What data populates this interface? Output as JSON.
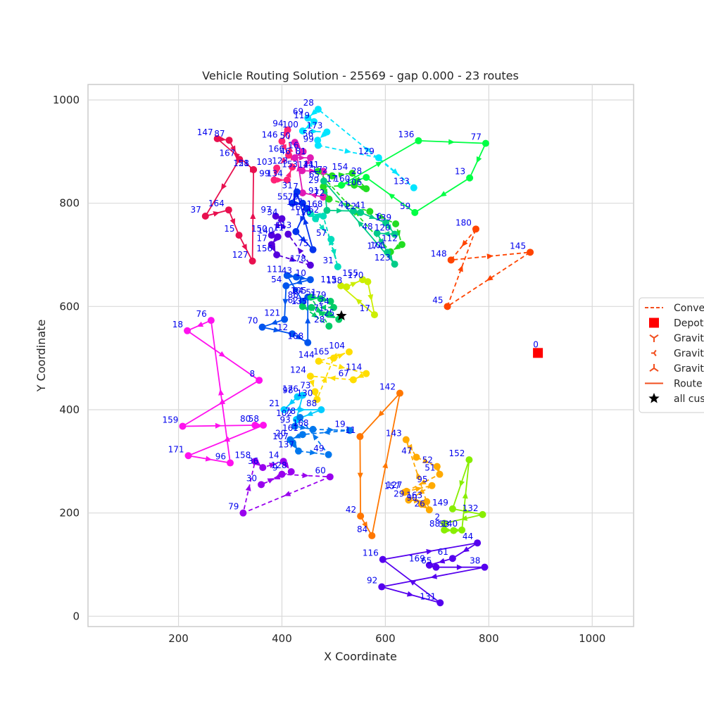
{
  "chart_data": {
    "type": "scatter",
    "title": "Vehicle Routing Solution - 25569 - gap 0.000 - 23 routes",
    "xlabel": "X Coordinate",
    "ylabel": "Y Coordinate",
    "xlim": [
      25,
      1080
    ],
    "ylim": [
      -20,
      1030
    ],
    "x_ticks": [
      200,
      400,
      600,
      800,
      1000
    ],
    "y_ticks": [
      0,
      200,
      400,
      600,
      800,
      1000
    ],
    "grid": true,
    "legend_position": "right-center (clipped)",
    "legend": [
      {
        "label": "Conve",
        "marker": "dashed-line",
        "color": "#f24e1e"
      },
      {
        "label": "Depot",
        "marker": "square",
        "color": "#ff0000"
      },
      {
        "label": "Gravit",
        "marker": "tri_down",
        "color": "#f24e1e"
      },
      {
        "label": "Gravit",
        "marker": "tri_left",
        "color": "#f24e1e"
      },
      {
        "label": "Gravit",
        "marker": "tri_up",
        "color": "#f24e1e"
      },
      {
        "label": "Route",
        "marker": "solid-line",
        "color": "#f24e1e"
      },
      {
        "label": "all cus",
        "marker": "star",
        "color": "#000000"
      }
    ],
    "depot": {
      "id": "0",
      "x": 895,
      "y": 510,
      "color": "#ff0000"
    },
    "star": {
      "x": 515,
      "y": 582
    },
    "routes": [
      {
        "color": "#e8104f",
        "stops": [
          [
            "147",
            275,
            925
          ],
          [
            "87",
            298,
            922
          ],
          [
            "167",
            318,
            885
          ],
          [
            "37",
            252,
            775
          ],
          [
            "164",
            297,
            787
          ],
          [
            "15",
            317,
            738
          ],
          [
            "127",
            343,
            688
          ],
          [
            "121",
            345,
            865
          ],
          [
            "58",
            345,
            865
          ]
        ]
      },
      {
        "color": "#ff2277",
        "stops": [
          [
            "94",
            411,
            942
          ],
          [
            "146",
            400,
            920
          ],
          [
            "166",
            413,
            893
          ],
          [
            "103",
            390,
            868
          ],
          [
            "99",
            385,
            845
          ],
          [
            "134",
            410,
            845
          ],
          [
            "123",
            420,
            870
          ]
        ]
      },
      {
        "color": "#e01ab5",
        "stops": [
          [
            "50",
            425,
            918
          ],
          [
            "16",
            441,
            900
          ],
          [
            "46",
            425,
            888
          ],
          [
            "81",
            455,
            888
          ],
          [
            "153",
            439,
            863
          ],
          [
            "141",
            480,
            862
          ],
          [
            "91",
            480,
            812
          ],
          [
            "7",
            440,
            820
          ]
        ]
      },
      {
        "color": "#00e5ff",
        "stops": [
          [
            "28",
            470,
            982
          ],
          [
            "69",
            450,
            965
          ],
          [
            "119",
            462,
            958
          ],
          [
            "100",
            440,
            940
          ],
          [
            "173",
            487,
            938
          ],
          [
            "56",
            469,
            922
          ],
          [
            "99",
            470,
            912
          ],
          [
            "129",
            587,
            888
          ],
          [
            "133",
            655,
            830
          ]
        ]
      },
      {
        "color": "#00ff44",
        "stops": [
          [
            "136",
            664,
            921
          ],
          [
            "77",
            794,
            916
          ],
          [
            "13",
            763,
            849
          ],
          [
            "59",
            657,
            782
          ],
          [
            "28",
            563,
            850
          ],
          [
            "17",
            515,
            835
          ]
        ]
      },
      {
        "color": "#22dd22",
        "stops": [
          [
            "141",
            470,
            862
          ],
          [
            "172",
            497,
            853
          ],
          [
            "154",
            536,
            858
          ],
          [
            "106",
            563,
            828
          ],
          [
            "160",
            540,
            835
          ],
          [
            "29",
            480,
            832
          ],
          [
            "72",
            491,
            808
          ],
          [
            "41",
            570,
            784
          ],
          [
            "139",
            620,
            760
          ],
          [
            "112",
            632,
            720
          ],
          [
            "101",
            610,
            706
          ]
        ]
      },
      {
        "color": "#00cc88",
        "stops": [
          [
            "65",
            481,
            843
          ],
          [
            "168",
            487,
            786
          ],
          [
            "41",
            538,
            785
          ],
          [
            "22",
            552,
            782
          ],
          [
            "6",
            601,
            762
          ],
          [
            "120",
            618,
            740
          ],
          [
            "48",
            584,
            742
          ],
          [
            "174",
            604,
            705
          ],
          [
            "123",
            618,
            682
          ]
        ]
      },
      {
        "color": "#00ddbb",
        "stops": [
          [
            "167",
            455,
            780
          ],
          [
            "110",
            465,
            770
          ],
          [
            "57",
            495,
            730
          ],
          [
            "31",
            508,
            677
          ],
          [
            "62",
            480,
            775
          ]
        ]
      },
      {
        "color": "#0033ee",
        "stops": [
          [
            "55",
            420,
            800
          ],
          [
            "70",
            440,
            800
          ],
          [
            "117",
            448,
            790
          ],
          [
            "113",
            427,
            745
          ],
          [
            "75",
            460,
            710
          ],
          [
            "31",
            429,
            822
          ]
        ]
      },
      {
        "color": "#5500dd",
        "stops": [
          [
            "97",
            388,
            775
          ],
          [
            "34",
            400,
            770
          ],
          [
            "150",
            380,
            738
          ],
          [
            "140",
            392,
            735
          ],
          [
            "17",
            380,
            720
          ],
          [
            "156",
            390,
            700
          ],
          [
            "178",
            455,
            680
          ],
          [
            "11",
            412,
            740
          ]
        ]
      },
      {
        "color": "#0055ee",
        "stops": [
          [
            "111",
            410,
            660
          ],
          [
            "43",
            428,
            657
          ],
          [
            "10",
            455,
            652
          ],
          [
            "54",
            408,
            640
          ],
          [
            "121",
            405,
            575
          ],
          [
            "70",
            362,
            560
          ],
          [
            "12",
            420,
            547
          ],
          [
            "108",
            450,
            530
          ],
          [
            "64",
            450,
            618
          ],
          [
            "86",
            440,
            610
          ]
        ]
      },
      {
        "color": "#00cc66",
        "stops": [
          [
            "105",
            456,
            618
          ],
          [
            "51",
            475,
            615
          ],
          [
            "179",
            494,
            610
          ],
          [
            "24",
            500,
            598
          ],
          [
            "135",
            457,
            598
          ],
          [
            "71",
            490,
            585
          ],
          [
            "25",
            510,
            575
          ],
          [
            "62",
            440,
            600
          ],
          [
            "28",
            491,
            562
          ]
        ]
      },
      {
        "color": "#ccee00",
        "stops": [
          [
            "115",
            514,
            640
          ],
          [
            "138",
            525,
            638
          ],
          [
            "155",
            556,
            652
          ],
          [
            "170",
            566,
            648
          ],
          [
            "17",
            579,
            584
          ]
        ]
      },
      {
        "color": "#ffdd00",
        "stops": [
          [
            "165",
            500,
            500
          ],
          [
            "104",
            530,
            512
          ],
          [
            "144",
            471,
            494
          ],
          [
            "114",
            563,
            470
          ],
          [
            "67",
            538,
            458
          ],
          [
            "124",
            455,
            465
          ],
          [
            "73",
            464,
            435
          ],
          [
            "130",
            468,
            420
          ]
        ]
      },
      {
        "color": "#00ccff",
        "stops": [
          [
            "176",
            440,
            428
          ],
          [
            "98",
            430,
            425
          ],
          [
            "21",
            404,
            400
          ],
          [
            "88",
            476,
            400
          ],
          [
            "102",
            428,
            381
          ]
        ]
      },
      {
        "color": "#0077ee",
        "stops": [
          [
            "78",
            435,
            385
          ],
          [
            "93",
            425,
            368
          ],
          [
            "168",
            460,
            362
          ],
          [
            "19",
            531,
            360
          ],
          [
            "161",
            440,
            352
          ],
          [
            "20",
            416,
            342
          ],
          [
            "107",
            421,
            336
          ],
          [
            "137",
            432,
            320
          ],
          [
            "49",
            490,
            313
          ]
        ]
      },
      {
        "color": "#ff11ee",
        "stops": [
          [
            "76",
            263,
            573
          ],
          [
            "18",
            217,
            553
          ],
          [
            "8",
            356,
            457
          ],
          [
            "159",
            208,
            368
          ],
          [
            "80",
            348,
            370
          ],
          [
            "58",
            364,
            370
          ],
          [
            "171",
            219,
            311
          ],
          [
            "96",
            300,
            297
          ]
        ]
      },
      {
        "color": "#9900ee",
        "stops": [
          [
            "158",
            348,
            300
          ],
          [
            "36",
            363,
            288
          ],
          [
            "14",
            403,
            300
          ],
          [
            "128",
            418,
            280
          ],
          [
            "30",
            360,
            255
          ],
          [
            "9",
            400,
            275
          ],
          [
            "60",
            493,
            270
          ],
          [
            "79",
            325,
            200
          ]
        ]
      },
      {
        "color": "#ff7700",
        "stops": [
          [
            "142",
            628,
            432
          ],
          [
            "11",
            551,
            348
          ],
          [
            "42",
            552,
            194
          ],
          [
            "84",
            574,
            156
          ]
        ]
      },
      {
        "color": "#ffaa00",
        "stops": [
          [
            "143",
            640,
            342
          ],
          [
            "47",
            660,
            308
          ],
          [
            "52",
            700,
            290
          ],
          [
            "51",
            705,
            275
          ],
          [
            "157",
            637,
            240
          ],
          [
            "127",
            641,
            242
          ],
          [
            "95",
            690,
            253
          ],
          [
            "29",
            645,
            225
          ],
          [
            "163",
            680,
            222
          ],
          [
            "90",
            670,
            217
          ],
          [
            "26",
            685,
            206
          ]
        ]
      },
      {
        "color": "#88ee00",
        "stops": [
          [
            "152",
            762,
            303
          ],
          [
            "149",
            730,
            208
          ],
          [
            "132",
            788,
            197
          ],
          [
            "2",
            714,
            180
          ],
          [
            "88",
            714,
            167
          ],
          [
            "53",
            732,
            166
          ],
          [
            "140",
            748,
            167
          ]
        ]
      },
      {
        "color": "#ff4400",
        "stops": [
          [
            "180",
            775,
            750
          ],
          [
            "148",
            727,
            690
          ],
          [
            "145",
            880,
            705
          ],
          [
            "45",
            720,
            600
          ]
        ]
      },
      {
        "color": "#5500ee",
        "stops": [
          [
            "116",
            595,
            110
          ],
          [
            "44",
            778,
            142
          ],
          [
            "61",
            730,
            112
          ],
          [
            "169",
            685,
            99
          ],
          [
            "65",
            698,
            95
          ],
          [
            "38",
            792,
            95
          ],
          [
            "92",
            593,
            57
          ],
          [
            "131",
            706,
            26
          ]
        ]
      }
    ]
  }
}
